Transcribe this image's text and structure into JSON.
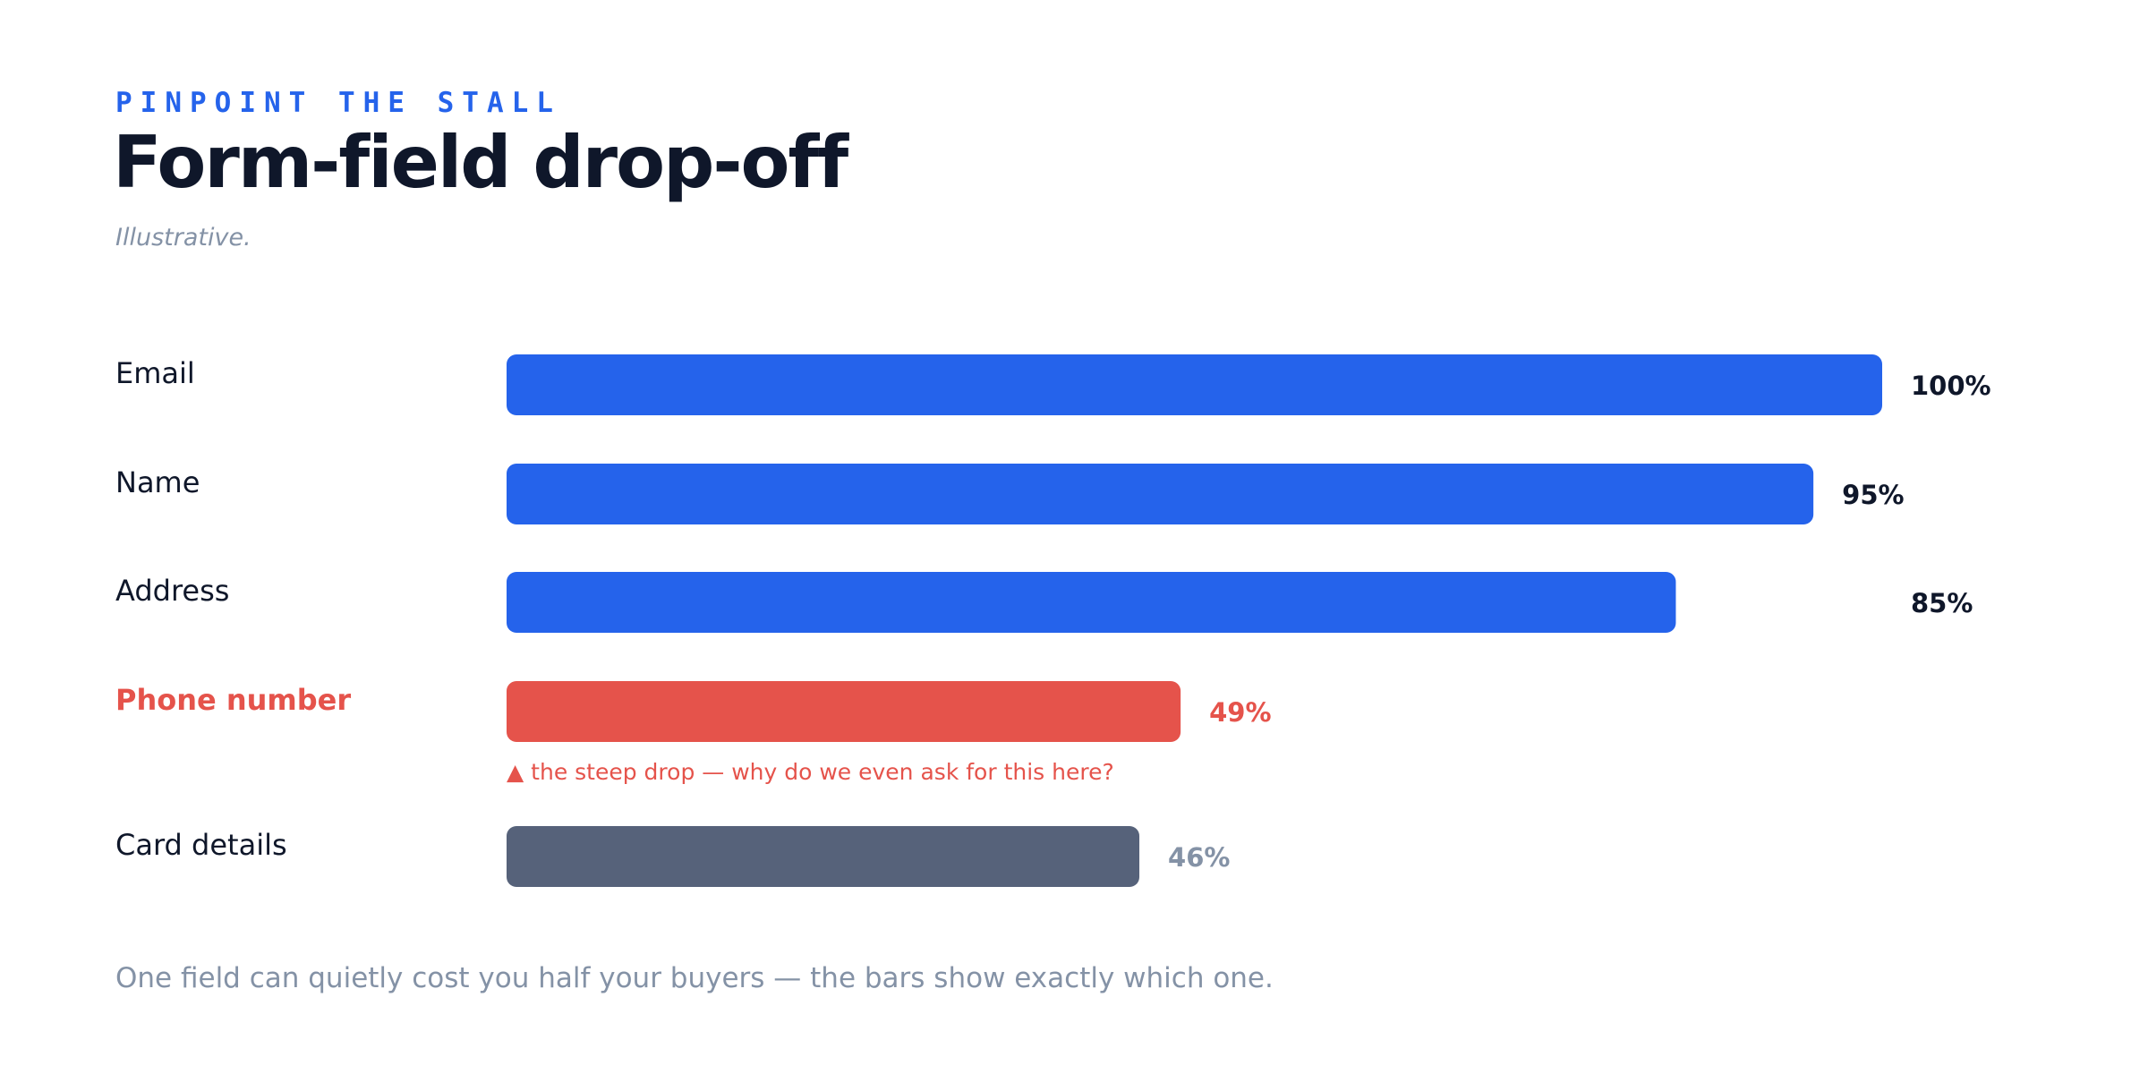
{
  "header": {
    "eyebrow": "PINPOINT THE STALL",
    "title": "Form-field drop-off",
    "subtitle": "Illustrative."
  },
  "chart_data": {
    "type": "bar",
    "orientation": "horizontal",
    "categories": [
      "Email",
      "Name",
      "Address",
      "Phone number",
      "Card details"
    ],
    "values": [
      100,
      95,
      85,
      49,
      46
    ],
    "value_labels": [
      "100%",
      "95%",
      "85%",
      "49%",
      "46%"
    ],
    "unit": "%",
    "xlim": [
      0,
      100
    ],
    "grid": false,
    "highlight": {
      "category": "Phone number",
      "annotation": "▲ the steep drop — why do we even ask for this here?"
    },
    "colors": {
      "default": "#2563eb",
      "highlight": "#e5534b",
      "after": "#56627a",
      "label_default": "#0f172a",
      "label_after": "#8492a6"
    }
  },
  "footer": {
    "caption": "One field can quietly cost you half your buyers — the bars show exactly which one."
  }
}
